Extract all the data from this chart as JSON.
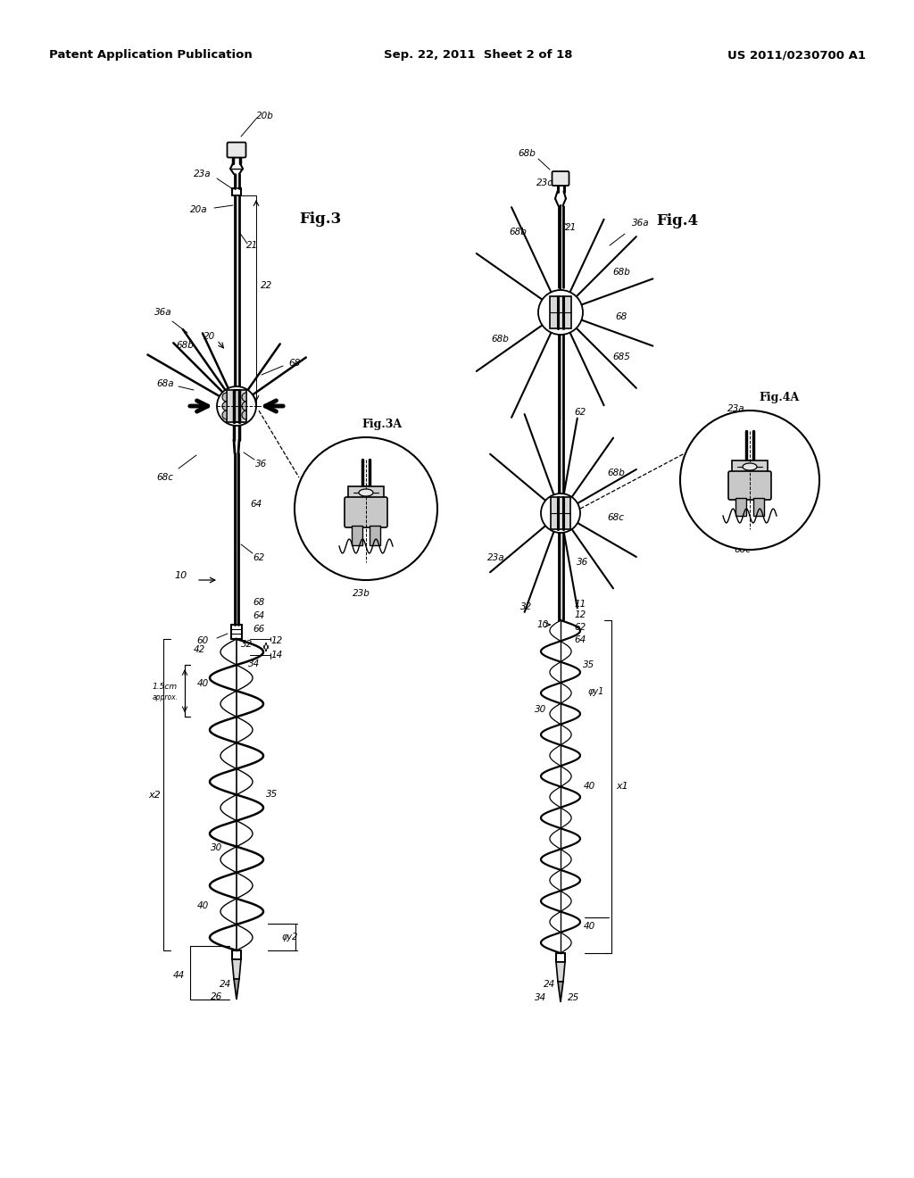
{
  "background_color": "#ffffff",
  "header_left": "Patent Application Publication",
  "header_center": "Sep. 22, 2011  Sheet 2 of 18",
  "header_right": "US 2011/0230700 A1",
  "fig3_label": "Fig.3",
  "fig4_label": "Fig.4",
  "fig3a_label": "Fig.3A",
  "fig4a_label": "Fig.4A",
  "line_color": "#000000"
}
